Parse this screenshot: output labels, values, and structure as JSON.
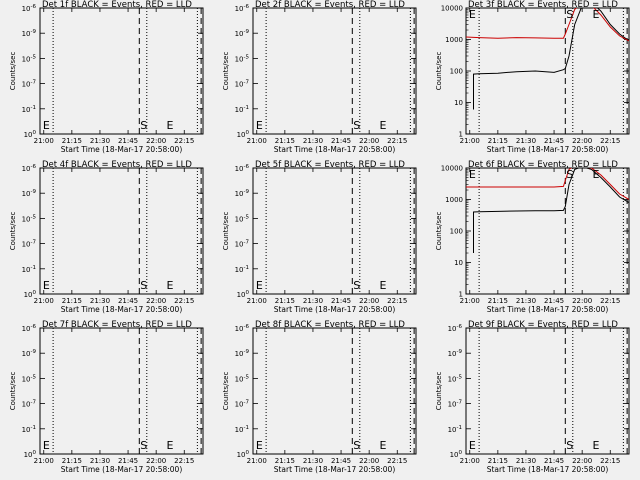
{
  "chart_data": {
    "type": "line",
    "xlabel": "Start Time (18-Mar-17 20:58:00)",
    "ylabel": "Counts/sec",
    "x_ticks": [
      "21:00",
      "21:15",
      "21:30",
      "21:45",
      "22:00",
      "22:15"
    ],
    "x_range": [
      "20:58",
      "22:25"
    ],
    "vlines": {
      "dotted": [
        "21:05",
        "21:55",
        "22:22"
      ],
      "dashed": [
        "21:51",
        "22:24"
      ]
    },
    "markers": [
      {
        "label": "E",
        "time": "20:59"
      },
      {
        "label": "S",
        "time": "21:51"
      },
      {
        "label": "E",
        "time": "22:05"
      }
    ],
    "empty_y_ticks": [
      {
        "base": "10",
        "exp": "-6"
      },
      {
        "base": "10",
        "exp": "-9"
      },
      {
        "base": "10",
        "exp": "-5"
      },
      {
        "base": "10",
        "exp": "-7"
      },
      {
        "base": "10",
        "exp": "-1"
      },
      {
        "base": "10",
        "exp": "0"
      }
    ],
    "log_y_ticks": [
      "10000",
      "1000",
      "100",
      "10",
      "1"
    ],
    "panels": [
      {
        "title": "Det 1f BLACK = Events, RED = LLD",
        "has_data": false
      },
      {
        "title": "Det 2f BLACK = Events, RED = LLD",
        "has_data": false
      },
      {
        "title": "Det 3f BLACK = Events, RED = LLD",
        "has_data": true,
        "ylim": [
          1,
          10000
        ],
        "series": [
          {
            "color": "#000000",
            "x": [
              "21:02",
              "21:02",
              "21:05",
              "21:15",
              "21:25",
              "21:35",
              "21:45",
              "21:50",
              "21:51",
              "21:53",
              "21:56",
              "22:00",
              "22:05",
              "22:10",
              "22:15",
              "22:20",
              "22:25"
            ],
            "y": [
              6,
              80,
              82,
              85,
              95,
              100,
              90,
              110,
              120,
              300,
              3000,
              12000,
              15000,
              8000,
              3000,
              1500,
              900
            ]
          },
          {
            "color": "#cc0000",
            "x": [
              "20:58",
              "21:05",
              "21:15",
              "21:25",
              "21:35",
              "21:45",
              "21:50",
              "21:51",
              "21:53",
              "21:56",
              "22:00",
              "22:05",
              "22:10",
              "22:15",
              "22:20",
              "22:25"
            ],
            "y": [
              1200,
              1150,
              1100,
              1150,
              1120,
              1100,
              1100,
              1500,
              3000,
              9000,
              14000,
              12000,
              6000,
              2500,
              1300,
              900
            ]
          }
        ]
      },
      {
        "title": "Det 4f BLACK = Events, RED = LLD",
        "has_data": false
      },
      {
        "title": "Det 5f BLACK = Events, RED = LLD",
        "has_data": false
      },
      {
        "title": "Det 6f BLACK = Events, RED = LLD",
        "has_data": true,
        "ylim": [
          1,
          10000
        ],
        "series": [
          {
            "color": "#000000",
            "x": [
              "21:02",
              "21:02",
              "21:05",
              "21:15",
              "21:25",
              "21:35",
              "21:45",
              "21:50",
              "21:51",
              "21:53",
              "21:56",
              "22:00",
              "22:05",
              "22:10",
              "22:15",
              "22:20",
              "22:25"
            ],
            "y": [
              20,
              400,
              410,
              420,
              430,
              440,
              440,
              450,
              600,
              3000,
              9000,
              11000,
              9000,
              5000,
              2500,
              1200,
              800
            ]
          },
          {
            "color": "#cc0000",
            "x": [
              "20:58",
              "21:05",
              "21:15",
              "21:25",
              "21:35",
              "21:45",
              "21:50",
              "21:51",
              "21:53",
              "21:56",
              "22:00",
              "22:05",
              "22:10",
              "22:15",
              "22:20",
              "22:25"
            ],
            "y": [
              2500,
              2500,
              2500,
              2500,
              2500,
              2500,
              2600,
              4000,
              9000,
              12000,
              11000,
              10000,
              6000,
              3000,
              1500,
              1000
            ]
          }
        ]
      },
      {
        "title": "Det 7f BLACK = Events, RED = LLD",
        "has_data": false
      },
      {
        "title": "Det 8f BLACK = Events, RED = LLD",
        "has_data": false
      },
      {
        "title": "Det 9f BLACK = Events, RED = LLD",
        "has_data": false
      }
    ]
  }
}
